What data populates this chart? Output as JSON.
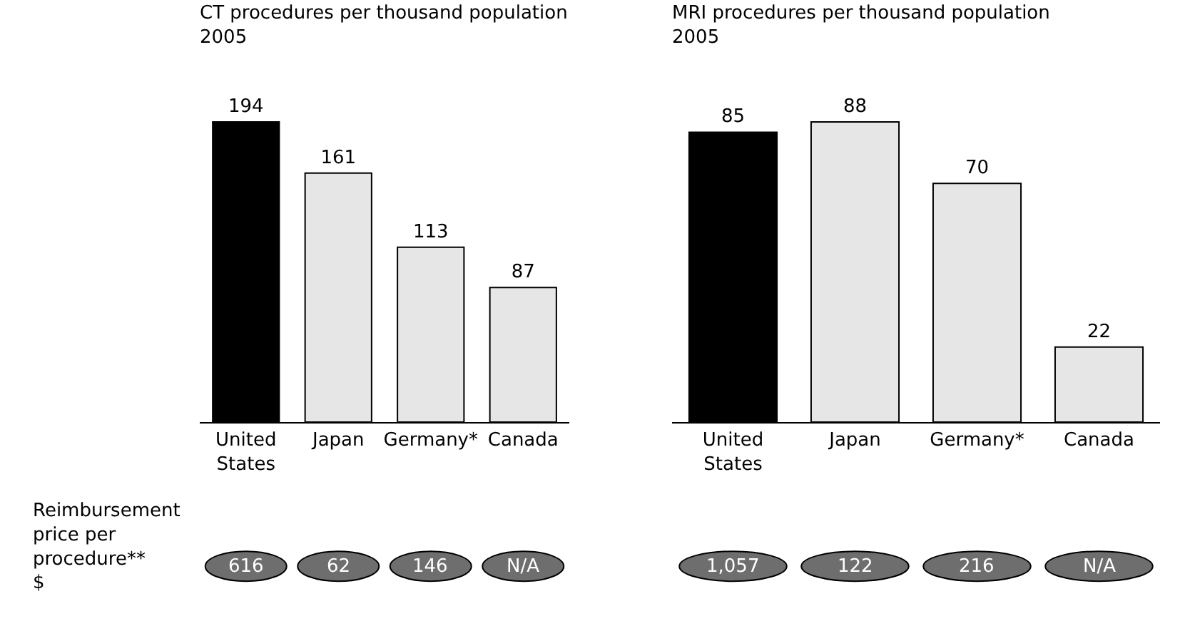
{
  "chart_data": [
    {
      "type": "bar",
      "title": "CT procedures per thousand population\n2005",
      "categories": [
        "United States",
        "Japan",
        "Germany*",
        "Canada"
      ],
      "values": [
        194,
        161,
        113,
        87
      ],
      "colors": [
        "#000000",
        "#e6e6e6",
        "#e6e6e6",
        "#e6e6e6"
      ],
      "data_labels": true,
      "grid": false,
      "legend": false,
      "tick_labels": "x",
      "annotations": [
        "Reimbursement price per procedure** $",
        "616",
        "62",
        "146",
        "N/A"
      ]
    },
    {
      "type": "bar",
      "title": "MRI procedures per thousand population\n2005",
      "categories": [
        "United States",
        "Japan",
        "Germany*",
        "Canada"
      ],
      "values": [
        85,
        88,
        70,
        22
      ],
      "colors": [
        "#000000",
        "#e6e6e6",
        "#e6e6e6",
        "#e6e6e6"
      ],
      "data_labels": true,
      "grid": false,
      "legend": false,
      "tick_labels": "x",
      "annotations": [
        "1,057",
        "122",
        "216",
        "N/A"
      ]
    }
  ]
}
